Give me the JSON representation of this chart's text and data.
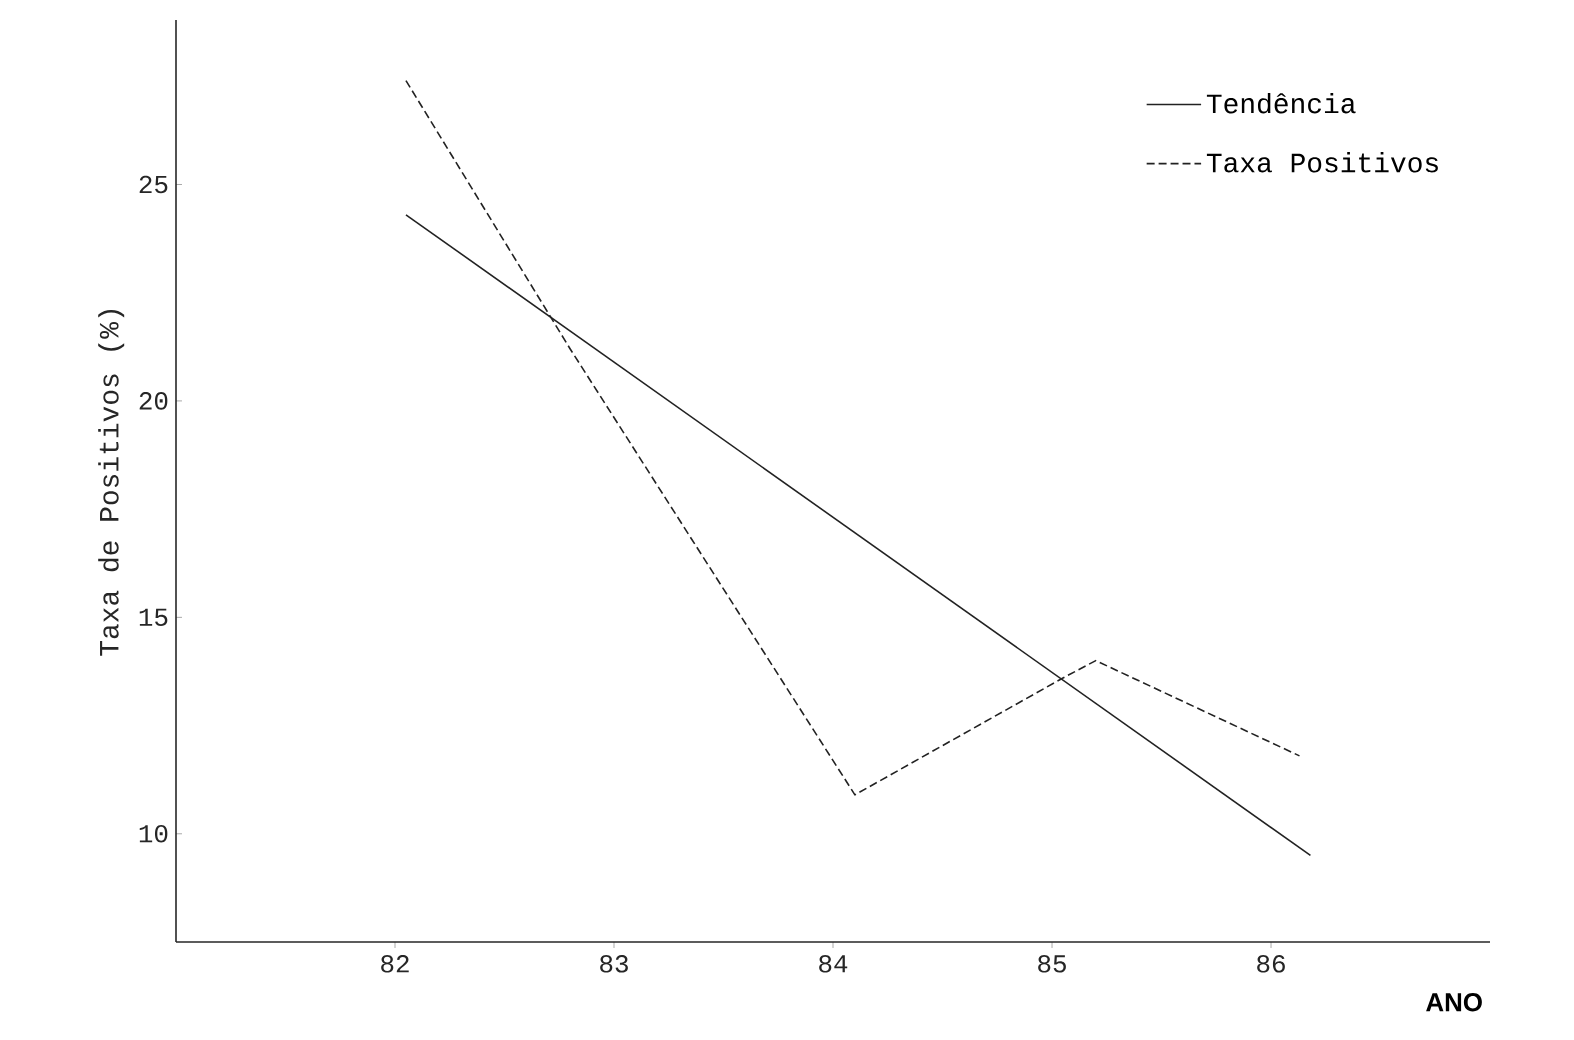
{
  "chart_data": {
    "type": "line",
    "xlabel": "ANO",
    "ylabel": "Taxa de Positivos (%)",
    "xlim": [
      81,
      87
    ],
    "ylim": [
      7.5,
      28.8
    ],
    "xticks": [
      82,
      83,
      84,
      85,
      86
    ],
    "yticks": [
      10,
      15,
      20,
      25
    ],
    "legend": "top right",
    "series": [
      {
        "name": "Tendência",
        "color": "#222222",
        "line_style": "solid",
        "x": [
          82.05,
          86.18
        ],
        "values": [
          24.3,
          9.5
        ]
      },
      {
        "name": "Taxa Positivos",
        "color": "#222222",
        "line_style": "dashed",
        "x": [
          82.05,
          82.8,
          84.1,
          85.05,
          85.2,
          86.13
        ],
        "values": [
          27.4,
          21.2,
          10.9,
          13.6,
          14.0,
          11.8
        ]
      }
    ]
  }
}
